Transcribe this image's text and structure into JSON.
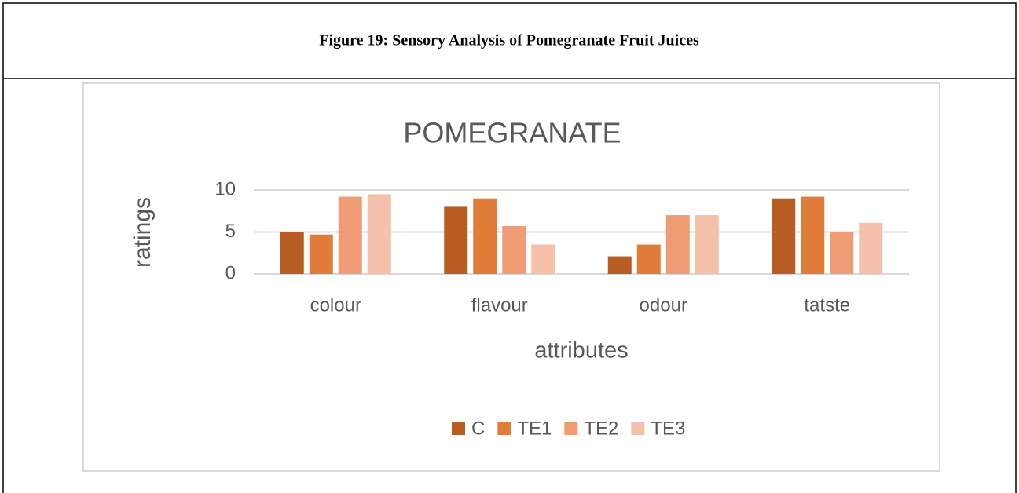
{
  "caption": "Figure 19: Sensory Analysis of Pomegranate Fruit Juices",
  "chart_data": {
    "type": "bar",
    "title": "POMEGRANATE",
    "x_label": "attributes",
    "y_label": "ratings",
    "categories": [
      "colour",
      "flavour",
      "odour",
      "tatste"
    ],
    "series": [
      {
        "name": "C",
        "color": "#b85e25",
        "values": [
          5,
          8,
          2.1,
          9
        ]
      },
      {
        "name": "TE1",
        "color": "#e07b39",
        "values": [
          4.7,
          9,
          3.5,
          9.2
        ]
      },
      {
        "name": "TE2",
        "color": "#ef9b73",
        "values": [
          9.2,
          5.7,
          7,
          5
        ]
      },
      {
        "name": "TE3",
        "color": "#f4c0aa",
        "values": [
          9.5,
          3.5,
          7,
          6.1
        ]
      }
    ],
    "ylim": [
      0,
      10
    ],
    "yticks": [
      0,
      5,
      10
    ],
    "grid": true,
    "legend": "bottom"
  }
}
